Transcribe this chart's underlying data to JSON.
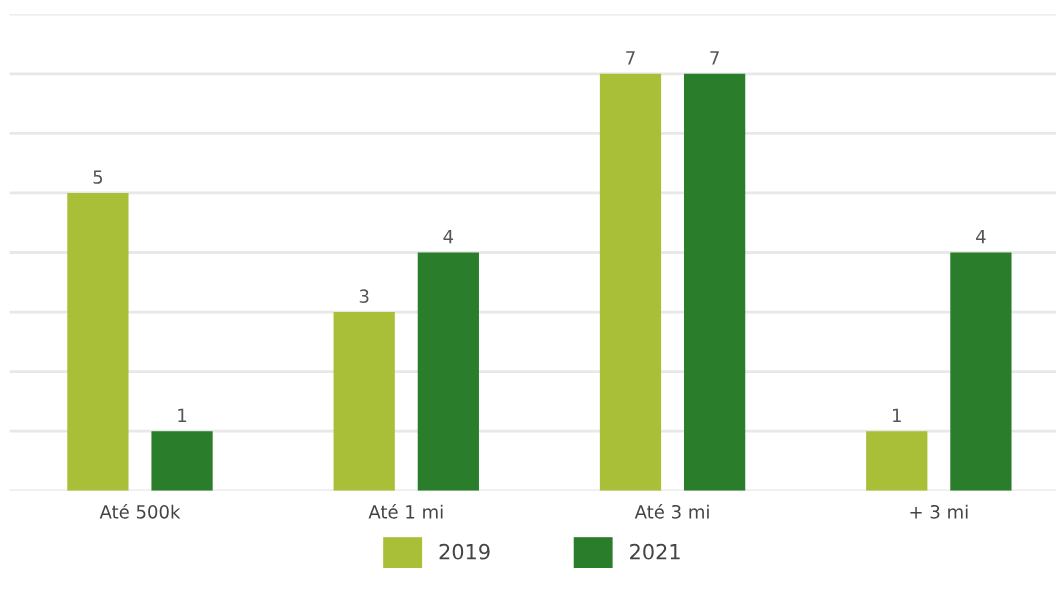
{
  "chart_data": {
    "type": "bar",
    "categories": [
      "Até 500k",
      "Até 1 mi",
      "Até 3 mi",
      "+ 3 mi"
    ],
    "series": [
      {
        "name": "2019",
        "color": "#a8bf37",
        "values": [
          5,
          3,
          7,
          1
        ]
      },
      {
        "name": "2021",
        "color": "#2a7d2a",
        "values": [
          1,
          4,
          7,
          4
        ]
      }
    ],
    "ylim": [
      0,
      8
    ],
    "yticks": [
      {
        "value": 0,
        "label": null
      },
      {
        "value": 1,
        "label": null
      },
      {
        "value": 2,
        "label": null
      },
      {
        "value": 3,
        "label": null
      },
      {
        "value": 4,
        "label": null
      },
      {
        "value": 5,
        "label": null
      },
      {
        "value": 6,
        "label": null
      },
      {
        "value": 7,
        "label": null
      },
      {
        "value": 8,
        "label": null
      }
    ],
    "tick_labels": "x",
    "grid": "y",
    "data_labels": true,
    "legend": "bottom"
  }
}
